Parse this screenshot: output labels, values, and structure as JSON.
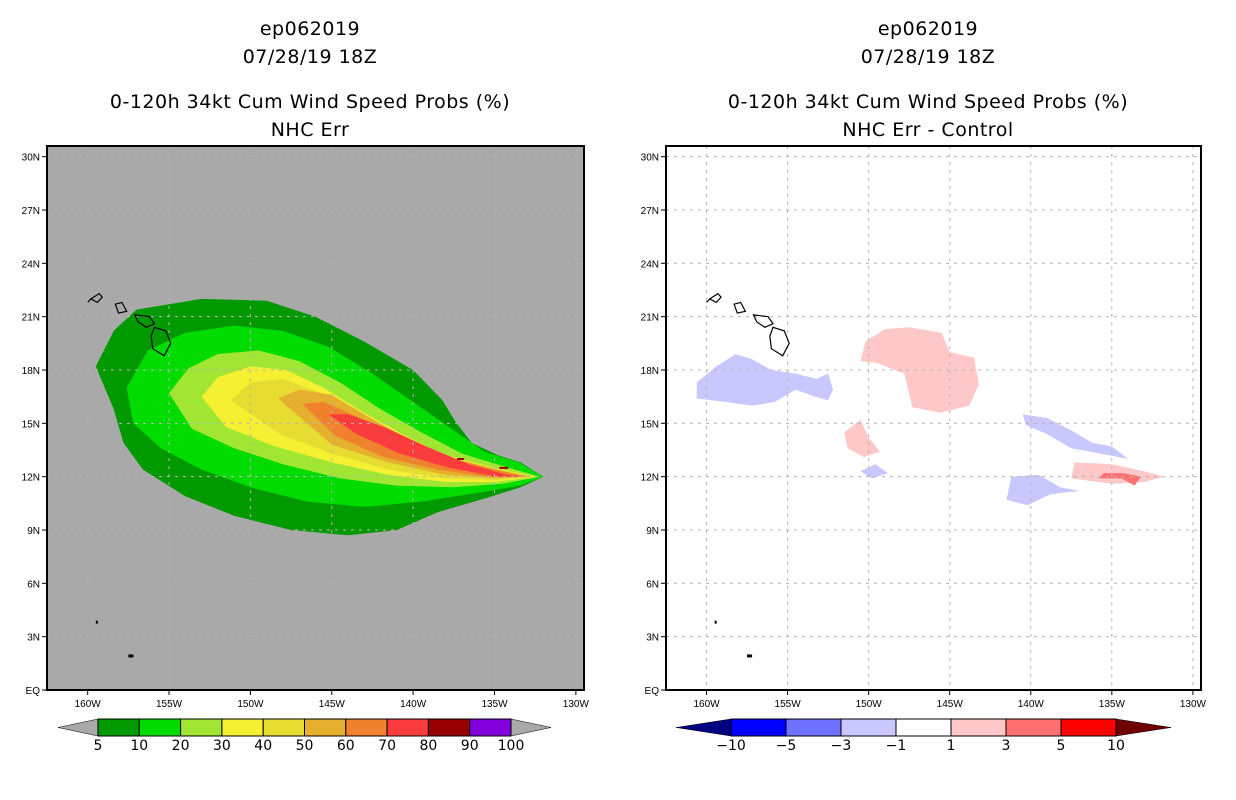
{
  "panels": [
    {
      "id": "left",
      "storm_id": "ep062019",
      "datetime": "07/28/19 18Z",
      "title": "0-120h 34kt Cum Wind Speed Probs (%)",
      "subtitle": "NHC Err",
      "background": "#a9a9a9",
      "colorbar": {
        "levels": [
          "5",
          "10",
          "20",
          "30",
          "40",
          "50",
          "60",
          "70",
          "80",
          "90",
          "100"
        ],
        "colors": [
          "#009900",
          "#00dc00",
          "#a0e632",
          "#f5f032",
          "#e6dc32",
          "#e6af2d",
          "#f0822d",
          "#fa3c3c",
          "#960000",
          "#8200dc"
        ],
        "left_arrow_color": "#a9a9a9",
        "right_arrow_color": "#a9a9a9"
      }
    },
    {
      "id": "right",
      "storm_id": "ep062019",
      "datetime": "07/28/19 18Z",
      "title": "0-120h 34kt Cum Wind Speed Probs (%)",
      "subtitle": "NHC Err - Control",
      "background": "#ffffff",
      "colorbar": {
        "levels": [
          "-10",
          "-5",
          "-3",
          "-1",
          "1",
          "3",
          "5",
          "10"
        ],
        "colors": [
          "#0000ff",
          "#7070ff",
          "#c8c8ff",
          "#ffffff",
          "#ffc8c8",
          "#ff7070",
          "#ff0000"
        ],
        "left_arrow_color": "#000080",
        "right_arrow_color": "#6e0000"
      }
    }
  ],
  "chart_data": [
    {
      "type": "heatmap",
      "title": "0-120h 34kt Cum Wind Speed Probs (%) — NHC Err",
      "xlabel": "",
      "ylabel": "",
      "x_ticks": [
        "160W",
        "155W",
        "150W",
        "145W",
        "140W",
        "135W",
        "130W"
      ],
      "y_ticks": [
        "EQ",
        "3N",
        "6N",
        "9N",
        "12N",
        "15N",
        "18N",
        "21N",
        "24N",
        "27N",
        "30N"
      ],
      "xlim": [
        -162.5,
        -129.5
      ],
      "ylim": [
        0,
        30.6
      ],
      "grid": true,
      "legend": "bottom",
      "contours": [
        {
          "level": 5,
          "polygon": [
            [
              -159.5,
              18.2
            ],
            [
              -158.4,
              20.2
            ],
            [
              -157.0,
              21.4
            ],
            [
              -153,
              22.0
            ],
            [
              -149,
              21.9
            ],
            [
              -146,
              21.0
            ],
            [
              -143,
              19.6
            ],
            [
              -140,
              18.0
            ],
            [
              -138.2,
              16.3
            ],
            [
              -137.4,
              15.1
            ],
            [
              -136.4,
              13.9
            ],
            [
              -134.8,
              13.2
            ],
            [
              -133.4,
              12.8
            ],
            [
              -132.0,
              12.0
            ],
            [
              -133.4,
              11.4
            ],
            [
              -135.5,
              10.8
            ],
            [
              -138.5,
              10.0
            ],
            [
              -141,
              9.0
            ],
            [
              -144,
              8.7
            ],
            [
              -147.5,
              9.0
            ],
            [
              -151,
              9.8
            ],
            [
              -154,
              10.9
            ],
            [
              -156.6,
              12.4
            ],
            [
              -157.8,
              13.9
            ],
            [
              -158.4,
              15.8
            ]
          ]
        },
        {
          "level": 10,
          "polygon": [
            [
              -157.6,
              17.0
            ],
            [
              -156.3,
              19.1
            ],
            [
              -154,
              20.1
            ],
            [
              -151,
              20.5
            ],
            [
              -148,
              20.2
            ],
            [
              -145.2,
              19.3
            ],
            [
              -142.5,
              17.8
            ],
            [
              -140,
              16.2
            ],
            [
              -137.8,
              14.8
            ],
            [
              -135.6,
              13.4
            ],
            [
              -133.5,
              12.8
            ],
            [
              -132.0,
              12.0
            ],
            [
              -133.4,
              11.5
            ],
            [
              -136,
              11.1
            ],
            [
              -139.5,
              10.6
            ],
            [
              -143,
              10.3
            ],
            [
              -146.5,
              10.6
            ],
            [
              -150,
              11.4
            ],
            [
              -153,
              12.4
            ],
            [
              -155.5,
              13.6
            ],
            [
              -157.2,
              15.0
            ]
          ]
        },
        {
          "level": 20,
          "polygon": [
            [
              -155.0,
              16.7
            ],
            [
              -153.8,
              18.1
            ],
            [
              -152,
              18.9
            ],
            [
              -149.5,
              19.1
            ],
            [
              -147,
              18.5
            ],
            [
              -144.5,
              17.3
            ],
            [
              -142,
              15.8
            ],
            [
              -139.5,
              14.5
            ],
            [
              -137,
              13.3
            ],
            [
              -134.5,
              12.6
            ],
            [
              -132.2,
              12.0
            ],
            [
              -134.5,
              11.6
            ],
            [
              -137.5,
              11.4
            ],
            [
              -141,
              11.5
            ],
            [
              -144.5,
              11.9
            ],
            [
              -148,
              12.7
            ],
            [
              -151,
              13.6
            ],
            [
              -153.6,
              14.7
            ]
          ]
        },
        {
          "level": 30,
          "polygon": [
            [
              -153.0,
              16.5
            ],
            [
              -152,
              17.6
            ],
            [
              -150,
              18.2
            ],
            [
              -147.8,
              18.0
            ],
            [
              -145.5,
              17.0
            ],
            [
              -143,
              15.6
            ],
            [
              -140.5,
              14.3
            ],
            [
              -138,
              13.2
            ],
            [
              -135,
              12.5
            ],
            [
              -132.4,
              12.0
            ],
            [
              -135,
              11.7
            ],
            [
              -138,
              11.7
            ],
            [
              -141.5,
              12.1
            ],
            [
              -145,
              12.8
            ],
            [
              -148.5,
              13.7
            ],
            [
              -151.5,
              14.8
            ]
          ]
        },
        {
          "level": 40,
          "polygon": [
            [
              -151.2,
              16.3
            ],
            [
              -150,
              17.3
            ],
            [
              -148,
              17.5
            ],
            [
              -145.7,
              16.7
            ],
            [
              -143.2,
              15.4
            ],
            [
              -140.5,
              14.1
            ],
            [
              -137.8,
              13.1
            ],
            [
              -135,
              12.5
            ],
            [
              -132.6,
              12.0
            ],
            [
              -135,
              11.8
            ],
            [
              -138,
              11.9
            ],
            [
              -141.5,
              12.4
            ],
            [
              -145,
              13.3
            ],
            [
              -148.2,
              14.4
            ]
          ]
        },
        {
          "level": 50,
          "polygon": [
            [
              -148.3,
              16.4
            ],
            [
              -147,
              16.9
            ],
            [
              -145,
              16.6
            ],
            [
              -142.8,
              15.4
            ],
            [
              -140.3,
              14.1
            ],
            [
              -137.6,
              13.0
            ],
            [
              -135,
              12.4
            ],
            [
              -132.8,
              12.0
            ],
            [
              -135,
              11.9
            ],
            [
              -138,
              12.1
            ],
            [
              -141.5,
              12.8
            ],
            [
              -145,
              13.8
            ]
          ]
        },
        {
          "level": 60,
          "polygon": [
            [
              -146.8,
              16.1
            ],
            [
              -145.5,
              16.2
            ],
            [
              -143.5,
              15.4
            ],
            [
              -141,
              14.3
            ],
            [
              -138.3,
              13.2
            ],
            [
              -135.4,
              12.5
            ],
            [
              -133.0,
              12.0
            ],
            [
              -135.4,
              12.0
            ],
            [
              -138.5,
              12.4
            ],
            [
              -141.8,
              13.1
            ],
            [
              -144.8,
              14.3
            ]
          ]
        },
        {
          "level": 70,
          "polygon": [
            [
              -145.2,
              15.5
            ],
            [
              -144,
              15.5
            ],
            [
              -141.8,
              14.8
            ],
            [
              -139.2,
              13.7
            ],
            [
              -136.6,
              12.7
            ],
            [
              -134.2,
              12.1
            ],
            [
              -133.2,
              12.0
            ],
            [
              -134.8,
              12.0
            ],
            [
              -137.8,
              12.5
            ],
            [
              -140.8,
              13.3
            ],
            [
              -143.5,
              14.4
            ]
          ]
        }
      ],
      "islands": [
        {
          "name": "Kauai",
          "lon": -159.5,
          "lat": 22.1
        },
        {
          "name": "Oahu",
          "lon": -158.0,
          "lat": 21.5
        },
        {
          "name": "Maui",
          "lon": -156.3,
          "lat": 20.8
        },
        {
          "name": "Big Island",
          "lon": -155.5,
          "lat": 19.6
        }
      ]
    },
    {
      "type": "heatmap",
      "title": "0-120h 34kt Cum Wind Speed Probs (%) — NHC Err - Control",
      "xlabel": "",
      "ylabel": "",
      "x_ticks": [
        "160W",
        "155W",
        "150W",
        "145W",
        "140W",
        "135W",
        "130W"
      ],
      "y_ticks": [
        "EQ",
        "3N",
        "6N",
        "9N",
        "12N",
        "15N",
        "18N",
        "21N",
        "24N",
        "27N",
        "30N"
      ],
      "xlim": [
        -162.5,
        -129.5
      ],
      "ylim": [
        0,
        30.6
      ],
      "grid": true,
      "legend": "bottom",
      "contours": [
        {
          "level": -3,
          "polygon": [
            [
              -160.6,
              17.3
            ],
            [
              -159.4,
              18.2
            ],
            [
              -158.2,
              18.9
            ],
            [
              -157.2,
              18.6
            ],
            [
              -156,
              18.0
            ],
            [
              -154.5,
              17.8
            ],
            [
              -153.2,
              17.5
            ],
            [
              -152.5,
              17.8
            ],
            [
              -152.2,
              16.9
            ],
            [
              -152.5,
              16.3
            ],
            [
              -153.3,
              16.5
            ],
            [
              -154.5,
              16.9
            ],
            [
              -155.8,
              16.2
            ],
            [
              -157.2,
              16.0
            ],
            [
              -158.8,
              16.2
            ],
            [
              -160.6,
              16.4
            ]
          ]
        },
        {
          "level": -3,
          "polygon": [
            [
              -140.5,
              15.5
            ],
            [
              -139,
              15.3
            ],
            [
              -137.5,
              14.6
            ],
            [
              -136.2,
              13.9
            ],
            [
              -135,
              13.7
            ],
            [
              -134,
              13.0
            ],
            [
              -135.7,
              13.3
            ],
            [
              -137.5,
              13.6
            ],
            [
              -139,
              14.4
            ],
            [
              -140.3,
              14.9
            ]
          ]
        },
        {
          "level": -3,
          "polygon": [
            [
              -141.2,
              12.0
            ],
            [
              -139.5,
              12.1
            ],
            [
              -138.2,
              11.4
            ],
            [
              -137.0,
              11.2
            ],
            [
              -138.8,
              11.0
            ],
            [
              -140.2,
              10.4
            ],
            [
              -141.5,
              10.7
            ]
          ]
        },
        {
          "level": -3,
          "polygon": [
            [
              -150.5,
              12.3
            ],
            [
              -149.6,
              12.7
            ],
            [
              -148.8,
              12.2
            ],
            [
              -149.8,
              11.9
            ]
          ]
        },
        {
          "level": 1,
          "polygon": [
            [
              -150.2,
              19.6
            ],
            [
              -149,
              20.3
            ],
            [
              -147.5,
              20.4
            ],
            [
              -145.5,
              20.1
            ],
            [
              -145,
              19.0
            ],
            [
              -143.5,
              18.7
            ],
            [
              -143.2,
              17.2
            ],
            [
              -143.8,
              16.0
            ],
            [
              -145.6,
              15.6
            ],
            [
              -147.3,
              15.9
            ],
            [
              -147.8,
              17.8
            ],
            [
              -149.5,
              18.4
            ],
            [
              -150.5,
              18.5
            ]
          ]
        },
        {
          "level": 1,
          "polygon": [
            [
              -147.5,
              20.1
            ],
            [
              -146,
              20.2
            ],
            [
              -145.8,
              19.4
            ],
            [
              -147,
              19.1
            ]
          ]
        },
        {
          "level": 1,
          "polygon": [
            [
              -151.5,
              14.5
            ],
            [
              -150.5,
              15.2
            ],
            [
              -150,
              14.2
            ],
            [
              -149.3,
              13.4
            ],
            [
              -150.3,
              13.1
            ],
            [
              -151.3,
              13.6
            ]
          ]
        },
        {
          "level": 1,
          "polygon": [
            [
              -137.3,
              12.8
            ],
            [
              -135,
              12.7
            ],
            [
              -133,
              12.3
            ],
            [
              -131.8,
              12.0
            ],
            [
              -133,
              11.7
            ],
            [
              -135,
              11.6
            ],
            [
              -137.5,
              11.9
            ]
          ]
        },
        {
          "level": 3,
          "polygon": [
            [
              -135.5,
              12.2
            ],
            [
              -134.3,
              12.2
            ],
            [
              -133.2,
              12.0
            ],
            [
              -133.6,
              11.5
            ],
            [
              -134.4,
              11.9
            ],
            [
              -135.8,
              11.9
            ]
          ]
        }
      ],
      "islands": [
        {
          "name": "Kauai",
          "lon": -159.5,
          "lat": 22.1
        },
        {
          "name": "Oahu",
          "lon": -158.0,
          "lat": 21.5
        },
        {
          "name": "Maui",
          "lon": -156.3,
          "lat": 20.8
        },
        {
          "name": "Big Island",
          "lon": -155.5,
          "lat": 19.6
        }
      ]
    }
  ]
}
